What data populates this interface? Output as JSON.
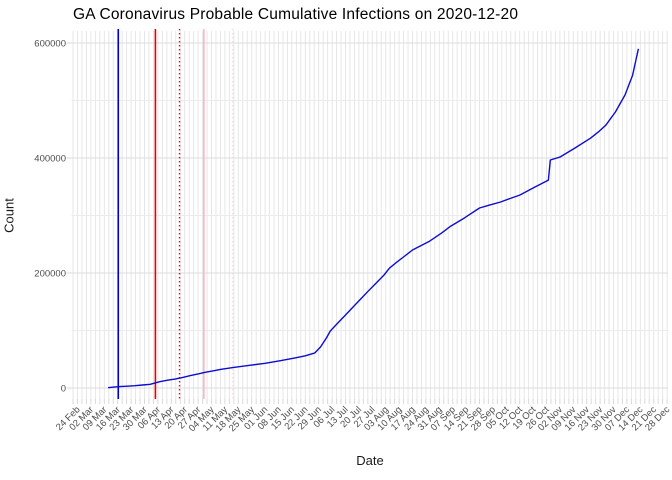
{
  "chart": {
    "title": "GA Coronavirus Probable Cumulative Infections on 2020-12-20",
    "xlabel": "Date",
    "ylabel": "Count"
  },
  "chart_data": {
    "type": "line",
    "title": "GA Coronavirus Probable Cumulative Infections on 2020-12-20",
    "xlabel": "Date",
    "ylabel": "Count",
    "legend": "none",
    "grid": "on",
    "background": "#ffffff",
    "ylim": [
      0,
      620000
    ],
    "y_major_ticks": [
      0,
      200000,
      400000,
      600000
    ],
    "y_major_tick_labels": [
      "0",
      "200000",
      "400000",
      "600000"
    ],
    "y_minor_gridlines": [
      100000,
      300000,
      500000
    ],
    "x_tick_labels": [
      "24 Feb",
      "02 Mar",
      "09 Mar",
      "16 Mar",
      "23 Mar",
      "30 Mar",
      "06 Apr",
      "13 Apr",
      "20 Apr",
      "27 Apr",
      "04 May",
      "11 May",
      "18 May",
      "25 May",
      "01 Jun",
      "08 Jun",
      "15 Jun",
      "22 Jun",
      "29 Jun",
      "06 Jul",
      "13 Jul",
      "20 Jul",
      "27 Jul",
      "03 Aug",
      "10 Aug",
      "17 Aug",
      "24 Aug",
      "31 Aug",
      "07 Sep",
      "14 Sep",
      "21 Sep",
      "28 Sep",
      "05 Oct",
      "12 Oct",
      "19 Oct",
      "26 Oct",
      "02 Nov",
      "09 Nov",
      "16 Nov",
      "23 Nov",
      "30 Nov",
      "07 Dec",
      "14 Dec",
      "21 Dec",
      "28 Dec"
    ],
    "x_tick_interval_days": 7,
    "x_gridlines_per_label_interval": 3,
    "series": [
      {
        "name": "probable-cumulative-infections",
        "color": "#0d0dd0",
        "note": "points are [days since first x tick (24 Feb 2020), cumulative count]",
        "points": [
          [
            16,
            500
          ],
          [
            19,
            1500
          ],
          [
            22,
            2500
          ],
          [
            26,
            3200
          ],
          [
            30,
            4000
          ],
          [
            34,
            5200
          ],
          [
            38,
            6500
          ],
          [
            43,
            11000
          ],
          [
            47,
            13500
          ],
          [
            51,
            15500
          ],
          [
            55,
            18500
          ],
          [
            59,
            21500
          ],
          [
            63,
            24500
          ],
          [
            67,
            27500
          ],
          [
            71,
            30000
          ],
          [
            75,
            32500
          ],
          [
            82,
            36000
          ],
          [
            90,
            39500
          ],
          [
            98,
            43000
          ],
          [
            106,
            47500
          ],
          [
            114,
            52500
          ],
          [
            119,
            56000
          ],
          [
            124,
            61000
          ],
          [
            127,
            71500
          ],
          [
            130,
            87000
          ],
          [
            132,
            99000
          ],
          [
            136,
            113000
          ],
          [
            140,
            127000
          ],
          [
            144,
            141000
          ],
          [
            148,
            155000
          ],
          [
            152,
            169000
          ],
          [
            156,
            182500
          ],
          [
            160,
            196000
          ],
          [
            163,
            208500
          ],
          [
            167,
            219500
          ],
          [
            171,
            229500
          ],
          [
            175,
            240000
          ],
          [
            184,
            255500
          ],
          [
            190,
            269000
          ],
          [
            195,
            281500
          ],
          [
            202,
            295500
          ],
          [
            210,
            313000
          ],
          [
            215,
            318000
          ],
          [
            221,
            323500
          ],
          [
            226,
            329500
          ],
          [
            231,
            335500
          ],
          [
            239,
            349500
          ],
          [
            246,
            361500
          ],
          [
            247,
            396500
          ],
          [
            252,
            401500
          ],
          [
            260,
            417500
          ],
          [
            268,
            434500
          ],
          [
            272,
            445000
          ],
          [
            276,
            457000
          ],
          [
            281,
            480000
          ],
          [
            286,
            509500
          ],
          [
            290,
            544000
          ],
          [
            293,
            590000
          ]
        ]
      }
    ],
    "vlines": [
      {
        "name": "blue-event-line",
        "day": 21.3,
        "color": "#0000cc",
        "style": "solid"
      },
      {
        "name": "red-event-line",
        "day": 40.7,
        "color": "#e80000",
        "style": "solid"
      },
      {
        "name": "red-dotted-event-line",
        "day": 53.3,
        "color": "#e80000",
        "style": "dotted"
      },
      {
        "name": "pink-event-line",
        "day": 66.0,
        "color": "#ffb3c4",
        "style": "solid"
      },
      {
        "name": "pink-dotted-event-line",
        "day": 81.2,
        "color": "#ffd0da",
        "style": "dotted"
      }
    ],
    "styles": {
      "v_gridline_color": "#e4e4e4",
      "h_major_gridline_color": "#dcdcdc",
      "h_minor_gridline_color": "#ebebeb",
      "tick_color": "#d9d9d9",
      "tick_label_color": "#4d4d4d"
    }
  }
}
